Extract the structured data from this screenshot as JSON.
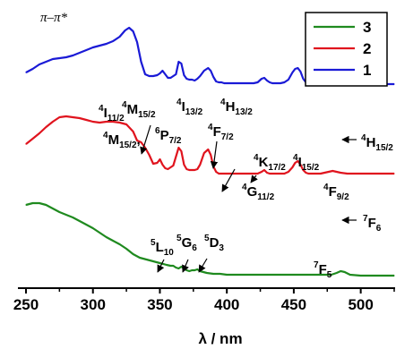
{
  "chart_data": {
    "type": "line",
    "title": "",
    "xlabel": "λ / nm",
    "ylabel": "",
    "xlim": [
      250,
      525
    ],
    "x_ticks": [
      "250",
      "300",
      "350",
      "400",
      "450",
      "500"
    ],
    "y_axis_shown": false,
    "legend": {
      "placement": "top-right",
      "entries": [
        {
          "label": "3",
          "color": "#1f8a1f"
        },
        {
          "label": "2",
          "color": "#e0141e"
        },
        {
          "label": "1",
          "color": "#1a1ad6"
        }
      ]
    },
    "y_units": "arbitrary, vertically offset spectra",
    "series": [
      {
        "name": "1",
        "color": "#1a1ad6",
        "offset": 2.0,
        "x": [
          250,
          255,
          260,
          265,
          270,
          275,
          280,
          285,
          290,
          295,
          300,
          305,
          310,
          315,
          320,
          324,
          327,
          330,
          333,
          336,
          339,
          342,
          345,
          348,
          350,
          352,
          354,
          356,
          358,
          360,
          362,
          364,
          366,
          368,
          370,
          372,
          374,
          376,
          378,
          380,
          383,
          386,
          388,
          390,
          392,
          394,
          396,
          398,
          400,
          405,
          410,
          415,
          420,
          423,
          426,
          428,
          430,
          432,
          434,
          437,
          440,
          443,
          446,
          449,
          451,
          453,
          455,
          457,
          459,
          461,
          463,
          466,
          470,
          473,
          476,
          479,
          482,
          485,
          490,
          495,
          500,
          505,
          510,
          515,
          520,
          525
        ],
        "y": [
          0.28,
          0.32,
          0.37,
          0.4,
          0.43,
          0.44,
          0.45,
          0.47,
          0.5,
          0.53,
          0.56,
          0.58,
          0.6,
          0.63,
          0.68,
          0.75,
          0.78,
          0.74,
          0.62,
          0.4,
          0.26,
          0.24,
          0.24,
          0.25,
          0.27,
          0.3,
          0.26,
          0.22,
          0.22,
          0.24,
          0.26,
          0.4,
          0.38,
          0.25,
          0.21,
          0.2,
          0.2,
          0.19,
          0.21,
          0.24,
          0.3,
          0.33,
          0.3,
          0.23,
          0.18,
          0.17,
          0.17,
          0.16,
          0.16,
          0.16,
          0.16,
          0.16,
          0.16,
          0.17,
          0.21,
          0.22,
          0.19,
          0.17,
          0.16,
          0.16,
          0.16,
          0.17,
          0.2,
          0.28,
          0.32,
          0.33,
          0.29,
          0.21,
          0.17,
          0.16,
          0.16,
          0.16,
          0.17,
          0.19,
          0.2,
          0.18,
          0.17,
          0.16,
          0.16,
          0.15,
          0.15,
          0.15,
          0.15,
          0.15,
          0.15,
          0.15
        ]
      },
      {
        "name": "2",
        "color": "#e0141e",
        "offset": 1.0,
        "x": [
          250,
          255,
          260,
          265,
          270,
          275,
          280,
          285,
          290,
          295,
          300,
          305,
          310,
          315,
          320,
          325,
          330,
          333,
          336,
          339,
          342,
          345,
          348,
          350,
          352,
          354,
          356,
          358,
          360,
          362,
          364,
          366,
          368,
          370,
          372,
          374,
          376,
          378,
          380,
          383,
          386,
          388,
          390,
          392,
          394,
          396,
          398,
          400,
          405,
          410,
          415,
          420,
          423,
          426,
          428,
          430,
          432,
          434,
          437,
          440,
          443,
          446,
          449,
          451,
          453,
          455,
          457,
          459,
          461,
          463,
          466,
          470,
          473,
          476,
          479,
          482,
          485,
          490,
          495,
          500,
          505,
          510,
          515,
          520,
          525
        ],
        "y": [
          0.48,
          0.54,
          0.6,
          0.67,
          0.73,
          0.78,
          0.79,
          0.78,
          0.77,
          0.75,
          0.73,
          0.72,
          0.73,
          0.73,
          0.72,
          0.7,
          0.62,
          0.52,
          0.5,
          0.44,
          0.36,
          0.26,
          0.27,
          0.31,
          0.25,
          0.21,
          0.2,
          0.22,
          0.24,
          0.34,
          0.44,
          0.4,
          0.25,
          0.2,
          0.19,
          0.19,
          0.19,
          0.2,
          0.25,
          0.38,
          0.42,
          0.36,
          0.23,
          0.17,
          0.15,
          0.15,
          0.15,
          0.15,
          0.15,
          0.15,
          0.15,
          0.15,
          0.15,
          0.17,
          0.19,
          0.16,
          0.15,
          0.15,
          0.15,
          0.15,
          0.15,
          0.17,
          0.22,
          0.27,
          0.29,
          0.25,
          0.19,
          0.16,
          0.15,
          0.15,
          0.15,
          0.15,
          0.16,
          0.17,
          0.18,
          0.17,
          0.16,
          0.15,
          0.15,
          0.15,
          0.15,
          0.15,
          0.15,
          0.15,
          0.15
        ]
      },
      {
        "name": "3",
        "color": "#1f8a1f",
        "offset": 0.0,
        "x": [
          250,
          255,
          260,
          265,
          270,
          275,
          280,
          285,
          290,
          295,
          300,
          305,
          310,
          315,
          320,
          325,
          330,
          335,
          340,
          345,
          350,
          355,
          358,
          360,
          362,
          364,
          366,
          368,
          370,
          372,
          374,
          376,
          378,
          380,
          385,
          390,
          395,
          400,
          410,
          420,
          430,
          440,
          450,
          460,
          470,
          478,
          482,
          485,
          488,
          492,
          500,
          510,
          520,
          525
        ],
        "y": [
          0.8,
          0.82,
          0.82,
          0.8,
          0.76,
          0.72,
          0.69,
          0.66,
          0.62,
          0.58,
          0.54,
          0.49,
          0.44,
          0.4,
          0.36,
          0.31,
          0.25,
          0.21,
          0.19,
          0.17,
          0.15,
          0.13,
          0.12,
          0.12,
          0.1,
          0.09,
          0.11,
          0.09,
          0.07,
          0.06,
          0.07,
          0.07,
          0.08,
          0.06,
          0.04,
          0.03,
          0.03,
          0.02,
          0.02,
          0.02,
          0.02,
          0.02,
          0.02,
          0.02,
          0.02,
          0.02,
          0.04,
          0.06,
          0.05,
          0.02,
          0.01,
          0.01,
          0.01,
          0.01
        ]
      }
    ],
    "annotations": [
      {
        "id": "pi",
        "text": "π–π*"
      },
      {
        "id": "I11",
        "main": "I",
        "pre": "4",
        "post": "11/2"
      },
      {
        "id": "M15a",
        "main": "M",
        "pre": "4",
        "post": "15/2"
      },
      {
        "id": "M15b",
        "main": "M",
        "pre": "4",
        "post": "15/2",
        "tail": ","
      },
      {
        "id": "P7",
        "main": "P",
        "pre": "6",
        "post": "7/2"
      },
      {
        "id": "F7",
        "main": "F",
        "pre": "4",
        "post": "7/2"
      },
      {
        "id": "I13",
        "main": "I",
        "pre": "4",
        "post": "13/2"
      },
      {
        "id": "H13",
        "main": "H",
        "pre": "4",
        "post": "13/2"
      },
      {
        "id": "K17",
        "main": "K",
        "pre": "4",
        "post": "17/2"
      },
      {
        "id": "G11",
        "main": "G",
        "pre": "4",
        "post": "11/2"
      },
      {
        "id": "I15",
        "main": "I",
        "pre": "4",
        "post": "15/2"
      },
      {
        "id": "F9",
        "main": "F",
        "pre": "4",
        "post": "9/2"
      },
      {
        "id": "H15",
        "main": "H",
        "pre": "4",
        "post": "15/2"
      },
      {
        "id": "F6",
        "main": "F",
        "pre": "7",
        "post": "6"
      },
      {
        "id": "L10",
        "main": "L",
        "pre": "5",
        "post": "10"
      },
      {
        "id": "G6",
        "main": "G",
        "pre": "5",
        "post": "6"
      },
      {
        "id": "D3",
        "main": "D",
        "pre": "5",
        "post": "3"
      },
      {
        "id": "F5",
        "main": "F",
        "pre": "7",
        "post": "5"
      }
    ]
  }
}
